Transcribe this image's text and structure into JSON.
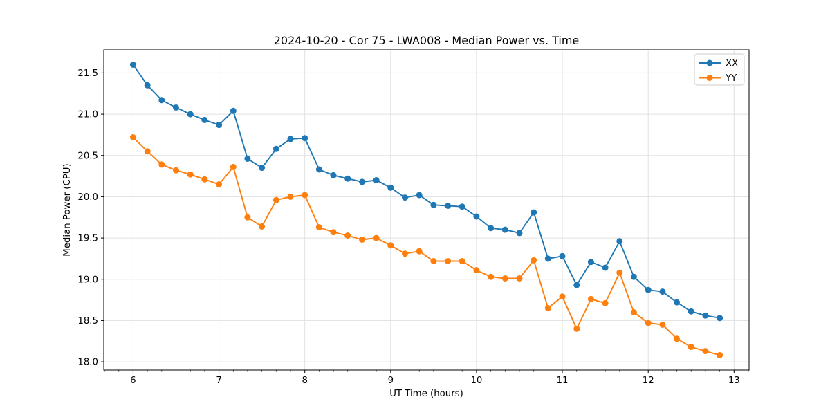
{
  "window": {
    "background": "#ffffff"
  },
  "chart_data": {
    "type": "line",
    "title": "2024-10-20 - Cor 75 - LWA008 - Median Power vs. Time",
    "xlabel": "UT Time (hours)",
    "ylabel": "Median Power (CPU)",
    "xlim": [
      5.658,
      13.175
    ],
    "ylim": [
      17.9,
      21.78
    ],
    "x_ticks": [
      6,
      7,
      8,
      9,
      10,
      11,
      12,
      13
    ],
    "y_ticks": [
      18.0,
      18.5,
      19.0,
      19.5,
      20.0,
      20.5,
      21.0,
      21.5
    ],
    "minor_x_divisions_per_hour": 6,
    "grid": true,
    "grid_color": "#e0e0e0",
    "spine_color": "#000000",
    "legend_position": "upper right",
    "legend_border_color": "#cccccc",
    "x": [
      6.0,
      6.167,
      6.333,
      6.5,
      6.667,
      6.833,
      7.0,
      7.167,
      7.333,
      7.5,
      7.667,
      7.833,
      8.0,
      8.167,
      8.333,
      8.5,
      8.667,
      8.833,
      9.0,
      9.167,
      9.333,
      9.5,
      9.667,
      9.833,
      10.0,
      10.167,
      10.333,
      10.5,
      10.667,
      10.833,
      11.0,
      11.167,
      11.333,
      11.5,
      11.667,
      11.833,
      12.0,
      12.167,
      12.333,
      12.5,
      12.667,
      12.833
    ],
    "series": [
      {
        "name": "XX",
        "color": "#1f77b4",
        "values": [
          21.6,
          21.35,
          21.17,
          21.08,
          21.0,
          20.93,
          20.87,
          21.04,
          20.46,
          20.35,
          20.58,
          20.7,
          20.71,
          20.33,
          20.26,
          20.22,
          20.18,
          20.2,
          20.11,
          19.99,
          20.02,
          19.9,
          19.89,
          19.88,
          19.76,
          19.62,
          19.6,
          19.56,
          19.81,
          19.25,
          19.28,
          18.93,
          19.21,
          19.14,
          19.46,
          19.03,
          18.87,
          18.85,
          18.72,
          18.61,
          18.56,
          18.53
        ]
      },
      {
        "name": "YY",
        "color": "#ff7f0e",
        "values": [
          20.72,
          20.55,
          20.39,
          20.32,
          20.27,
          20.21,
          20.15,
          20.36,
          19.75,
          19.64,
          19.96,
          20.0,
          20.02,
          19.63,
          19.57,
          19.53,
          19.48,
          19.5,
          19.41,
          19.31,
          19.34,
          19.22,
          19.22,
          19.22,
          19.11,
          19.03,
          19.01,
          19.01,
          19.23,
          18.65,
          18.79,
          18.4,
          18.76,
          18.71,
          19.08,
          18.6,
          18.47,
          18.45,
          18.28,
          18.18,
          18.13,
          18.08
        ]
      }
    ]
  }
}
